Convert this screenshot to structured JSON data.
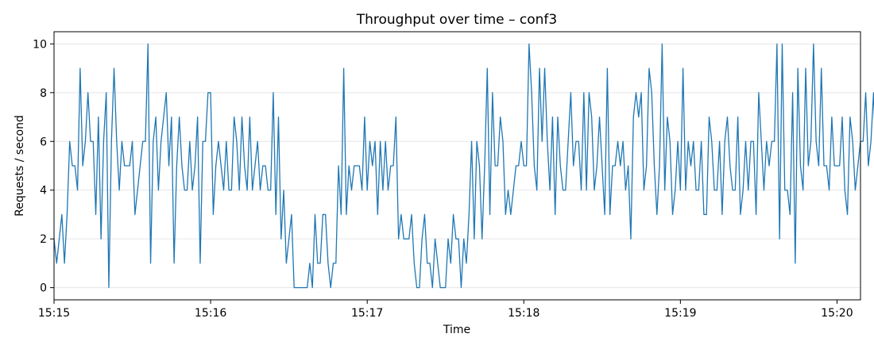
{
  "chart_data": {
    "type": "line",
    "title": "Throughput over time – conf3",
    "xlabel": "Time",
    "ylabel": "Requests / second",
    "xlim": [
      "15:15:00",
      "15:20:09"
    ],
    "ylim": [
      -0.5,
      10.5
    ],
    "x_ticks": [
      "15:15",
      "15:16",
      "15:17",
      "15:18",
      "15:19",
      "15:20"
    ],
    "y_ticks": [
      "0",
      "2",
      "4",
      "6",
      "8",
      "10"
    ],
    "grid": "horizontal",
    "legend": "none",
    "x_start": "15:15:00",
    "x_step_seconds": 1,
    "series": [
      {
        "color": "#1f77b4",
        "values": [
          2,
          1,
          2,
          3,
          1,
          3,
          6,
          5,
          5,
          4,
          9,
          5,
          6,
          8,
          6,
          6,
          3,
          7,
          2,
          6,
          8,
          0,
          6,
          9,
          6,
          4,
          6,
          5,
          5,
          5,
          6,
          3,
          4,
          5,
          6,
          6,
          10,
          1,
          6,
          7,
          4,
          6,
          7,
          8,
          5,
          7,
          1,
          5,
          7,
          5,
          4,
          4,
          6,
          4,
          5,
          7,
          1,
          6,
          6,
          8,
          8,
          3,
          5,
          6,
          5,
          4,
          6,
          4,
          4,
          7,
          6,
          4,
          7,
          5,
          4,
          7,
          4,
          5,
          6,
          4,
          5,
          5,
          4,
          4,
          8,
          3,
          7,
          2,
          4,
          1,
          2,
          3,
          0,
          0,
          0,
          0,
          0,
          0,
          1,
          0,
          3,
          1,
          1,
          3,
          3,
          1,
          0,
          1,
          1,
          5,
          3,
          9,
          3,
          5,
          4,
          5,
          5,
          5,
          4,
          7,
          4,
          6,
          5,
          6,
          3,
          6,
          4,
          6,
          4,
          5,
          5,
          7,
          2,
          3,
          2,
          2,
          2,
          3,
          1,
          0,
          0,
          2,
          3,
          1,
          1,
          0,
          2,
          1,
          0,
          0,
          0,
          2,
          1,
          3,
          2,
          2,
          0,
          2,
          1,
          3,
          6,
          2,
          6,
          5,
          2,
          5,
          9,
          3,
          8,
          5,
          5,
          7,
          6,
          3,
          4,
          3,
          4,
          5,
          5,
          6,
          5,
          5,
          10,
          8,
          5,
          4,
          9,
          6,
          9,
          6,
          4,
          7,
          3,
          7,
          5,
          4,
          4,
          6,
          8,
          5,
          6,
          6,
          4,
          8,
          4,
          8,
          7,
          4,
          5,
          7,
          5,
          3,
          9,
          3,
          5,
          5,
          6,
          5,
          6,
          4,
          5,
          2,
          7,
          8,
          7,
          8,
          4,
          5,
          9,
          8,
          5,
          3,
          5,
          10,
          4,
          7,
          6,
          3,
          4,
          6,
          4,
          9,
          4,
          6,
          5,
          6,
          4,
          4,
          6,
          3,
          3,
          7,
          6,
          4,
          4,
          6,
          3,
          6,
          7,
          5,
          4,
          4,
          7,
          3,
          4,
          6,
          4,
          6,
          6,
          3,
          8,
          6,
          4,
          6,
          5,
          6,
          6,
          10,
          2,
          10,
          4,
          4,
          3,
          8,
          1,
          9,
          5,
          4,
          9,
          5,
          6,
          10,
          6,
          5,
          9,
          5,
          5,
          4,
          7,
          5,
          5,
          5,
          7,
          4,
          3,
          7,
          6,
          4,
          5,
          6,
          6,
          8,
          5,
          6,
          8,
          5,
          3
        ]
      }
    ]
  }
}
